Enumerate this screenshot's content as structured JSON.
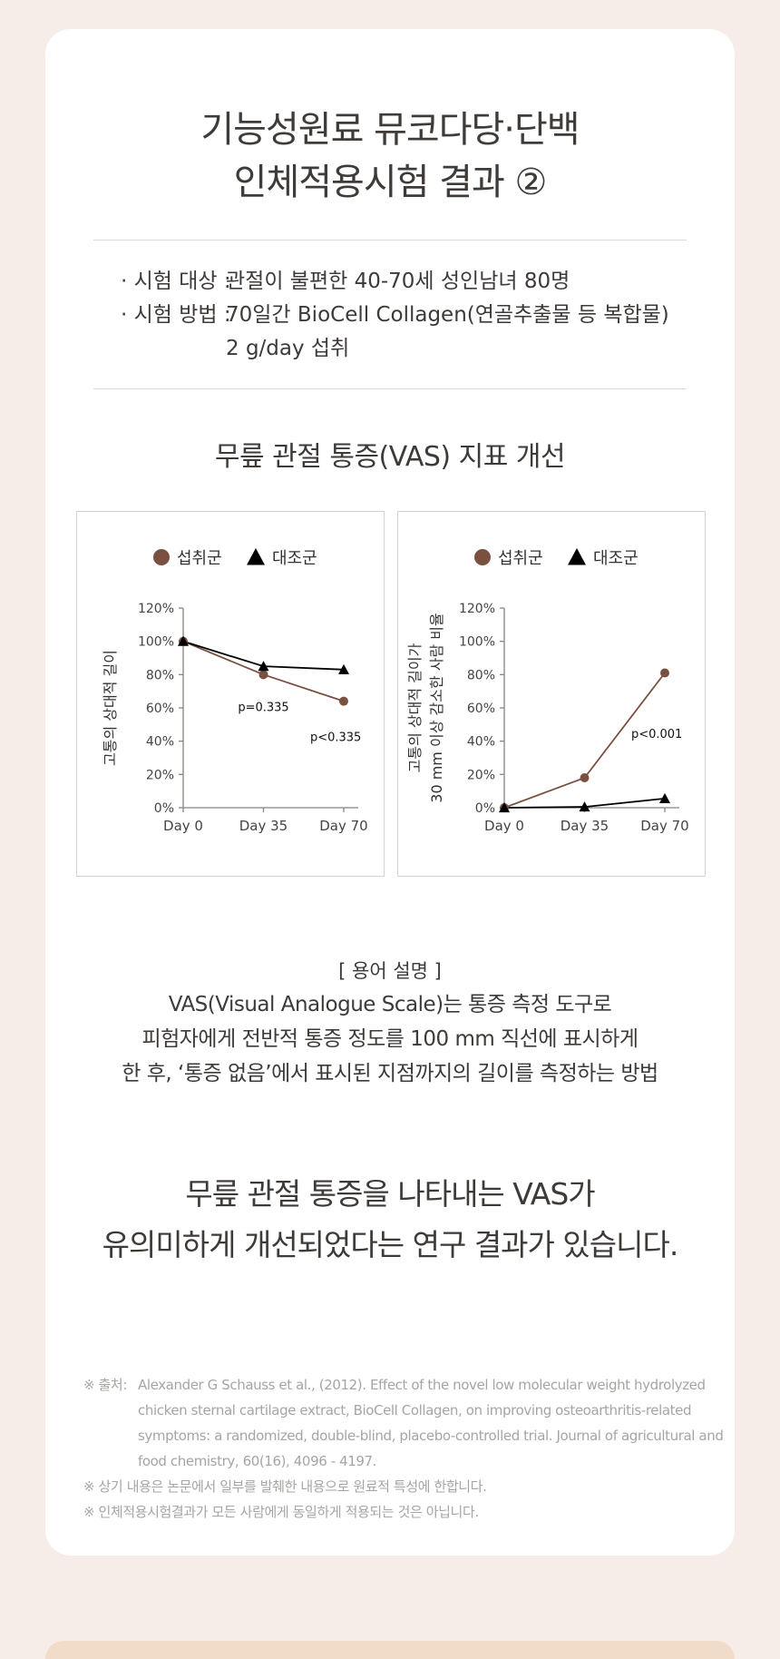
{
  "title": {
    "line1": "기능성원료 뮤코다당·단백",
    "line2": "인체적용시험 결과 ②"
  },
  "study": {
    "subject_label": "· 시험 대상 :",
    "subject_value": "관절이 불편한 40-70세 성인남녀 80명",
    "method_label": "· 시험 방법 :",
    "method_value_1": "70일간 BioCell Collagen(연골추출물 등 복합물)",
    "method_value_2": "2 g/day 섭취"
  },
  "section_title": "무릎 관절 통증(VAS) 지표 개선",
  "colors": {
    "intake": "#7a5040",
    "control": "#000000",
    "axis": "#8a8280"
  },
  "chart_data": [
    {
      "type": "line",
      "categories": [
        "Day 0",
        "Day 35",
        "Day 70"
      ],
      "series": [
        {
          "name": "섭취군",
          "marker": "circle",
          "values": [
            100,
            80,
            64
          ]
        },
        {
          "name": "대조군",
          "marker": "triangle",
          "values": [
            100,
            85,
            83
          ]
        }
      ],
      "ylabel": "고통의 상대적 길이",
      "ylim": [
        0,
        120
      ],
      "yticks": [
        "0%",
        "20%",
        "40%",
        "60%",
        "80%",
        "100%",
        "120%"
      ],
      "annotations": [
        {
          "text": "p=0.335",
          "x": 1.0,
          "y": 58
        },
        {
          "text": "p<0.335",
          "x": 1.9,
          "y": 40
        }
      ]
    },
    {
      "type": "line",
      "categories": [
        "Day 0",
        "Day 35",
        "Day 70"
      ],
      "series": [
        {
          "name": "섭취군",
          "marker": "circle",
          "values": [
            0,
            18,
            81
          ]
        },
        {
          "name": "대조군",
          "marker": "triangle",
          "values": [
            0,
            0.5,
            5.5
          ]
        }
      ],
      "ylabel": [
        "고통의 상대적 길이가",
        "30 mm 이상 감소한 사람 비율"
      ],
      "ylim": [
        0,
        120
      ],
      "yticks": [
        "0%",
        "20%",
        "40%",
        "60%",
        "80%",
        "100%",
        "120%"
      ],
      "annotations": [
        {
          "text": "p<0.001",
          "x": 1.9,
          "y": 42
        }
      ]
    }
  ],
  "terms": {
    "heading": "[ 용어 설명 ]",
    "line1": "VAS(Visual Analogue Scale)는 통증 측정 도구로",
    "line2": "피험자에게 전반적 통증 정도를 100 mm 직선에 표시하게",
    "line3": "한 후, ‘통증 없음’에서 표시된 지점까지의 길이를 측정하는 방법"
  },
  "conclusion": {
    "line1": "무릎 관절 통증을 나타내는 VAS가",
    "line2": "유의미하게 개선되었다는 연구 결과가 있습니다."
  },
  "source": {
    "label": "※ 출처:",
    "line1": "Alexander G Schauss et al., (2012). Effect of the novel low molecular weight hydrolyzed",
    "line2": "chicken sternal cartilage extract, BioCell Collagen, on improving osteoarthritis-related",
    "line3": "symptoms: a randomized, double-blind, placebo-controlled trial. Journal of agricultural and",
    "line4": "food chemistry, 60(16), 4096 - 4197.",
    "note1": "※ 상기 내용은 논문에서 일부를 발췌한 내용으로 원료적 특성에 한합니다.",
    "note2": "※ 인체적용시험결과가 모든 사람에게 동일하게 적용되는 것은 아닙니다."
  }
}
